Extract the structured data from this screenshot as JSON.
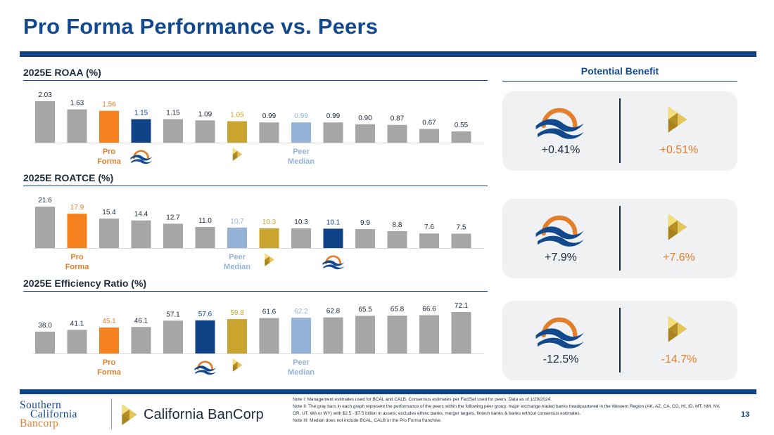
{
  "page": {
    "title": "Pro Forma Performance vs. Peers",
    "page_number": "13"
  },
  "benefit": {
    "title": "Potential Benefit",
    "cards": [
      {
        "left_value": "+0.41%",
        "right_value": "+0.51%"
      },
      {
        "left_value": "+7.9%",
        "right_value": "+7.6%"
      },
      {
        "left_value": "-12.5%",
        "right_value": "-14.7%"
      }
    ]
  },
  "notes": [
    "Note I: Management estimates used for BCAL and CALB. Consensus estimates per FactSet used for peers. Data as of 1/29/2024.",
    "Note II: The gray bars in each graph represent the performance of the peers within the following peer group: major exchange-traded banks headquartered in the Western Region (AK, AZ, CA, CO, HI, ID, MT, NM, NV, OR, UT, WA or WY) with $2.5 - $7.5 billion in assets; excludes ethnic banks, merger targets, fintech banks & banks without consensus estimates.",
    "Note III: Median does not include BCAL, CALB or the Pro Forma franchise."
  ],
  "logos": {
    "scb_line1": "Southern",
    "scb_line2": "California",
    "scb_line3": "Bancorp",
    "cb_name": "California BanCorp"
  },
  "colors": {
    "gray": "#a6a6a6",
    "pro_forma": "#f5821f",
    "scb": "#0f4287",
    "calb": "#c9a52f",
    "peer_median": "#95b3d7",
    "label_gray": "#1c2a3b"
  },
  "chart_data": [
    {
      "type": "bar",
      "title": "2025E ROAA (%)",
      "values": [
        2.03,
        1.63,
        1.56,
        1.15,
        1.15,
        1.09,
        1.05,
        0.99,
        0.99,
        0.99,
        0.9,
        0.87,
        0.67,
        0.55
      ],
      "value_labels": [
        "2.03",
        "1.63",
        "1.56",
        "1.15",
        "1.15",
        "1.09",
        "1.05",
        "0.99",
        "0.99",
        "0.99",
        "0.90",
        "0.87",
        "0.67",
        "0.55"
      ],
      "bar_kinds": [
        "peer",
        "peer",
        "pro_forma",
        "scb",
        "peer",
        "peer",
        "calb",
        "peer",
        "peer_median",
        "peer",
        "peer",
        "peer",
        "peer",
        "peer"
      ],
      "markers": [
        {
          "index": 2,
          "kind": "text",
          "text": "Pro\nForma",
          "color": "#e37f2a"
        },
        {
          "index": 3,
          "kind": "scb-icon"
        },
        {
          "index": 6,
          "kind": "calb-icon"
        },
        {
          "index": 8,
          "kind": "text",
          "text": "Peer\nMedian",
          "color": "#95b3d7"
        }
      ]
    },
    {
      "type": "bar",
      "title": "2025E ROATCE (%)",
      "values": [
        21.6,
        17.9,
        15.4,
        14.4,
        12.7,
        11.0,
        10.7,
        10.3,
        10.3,
        10.1,
        9.9,
        8.8,
        7.6,
        7.5
      ],
      "value_labels": [
        "21.6",
        "17.9",
        "15.4",
        "14.4",
        "12.7",
        "11.0",
        "10.7",
        "10.3",
        "10.3",
        "10.1",
        "9.9",
        "8.8",
        "7.6",
        "7.5"
      ],
      "bar_kinds": [
        "peer",
        "pro_forma",
        "peer",
        "peer",
        "peer",
        "peer",
        "peer_median",
        "calb",
        "peer",
        "scb",
        "peer",
        "peer",
        "peer",
        "peer"
      ],
      "markers": [
        {
          "index": 1,
          "kind": "text",
          "text": "Pro\nForma",
          "color": "#e37f2a"
        },
        {
          "index": 6,
          "kind": "text",
          "text": "Peer\nMedian",
          "color": "#95b3d7"
        },
        {
          "index": 7,
          "kind": "calb-icon"
        },
        {
          "index": 9,
          "kind": "scb-icon"
        }
      ]
    },
    {
      "type": "bar",
      "title": "2025E Efficiency Ratio (%)",
      "values": [
        38.0,
        41.1,
        45.1,
        46.1,
        57.1,
        57.6,
        59.8,
        61.6,
        62.2,
        62.8,
        65.5,
        65.8,
        66.6,
        72.1
      ],
      "value_labels": [
        "38.0",
        "41.1",
        "45.1",
        "46.1",
        "57.1",
        "57.6",
        "59.8",
        "61.6",
        "62.2",
        "62.8",
        "65.5",
        "65.8",
        "66.6",
        "72.1"
      ],
      "bar_kinds": [
        "peer",
        "peer",
        "pro_forma",
        "peer",
        "peer",
        "scb",
        "calb",
        "peer",
        "peer_median",
        "peer",
        "peer",
        "peer",
        "peer",
        "peer"
      ],
      "markers": [
        {
          "index": 2,
          "kind": "text",
          "text": "Pro\nForma",
          "color": "#e37f2a"
        },
        {
          "index": 5,
          "kind": "scb-icon"
        },
        {
          "index": 6,
          "kind": "calb-icon"
        },
        {
          "index": 8,
          "kind": "text",
          "text": "Peer\nMedian",
          "color": "#95b3d7"
        }
      ]
    }
  ]
}
